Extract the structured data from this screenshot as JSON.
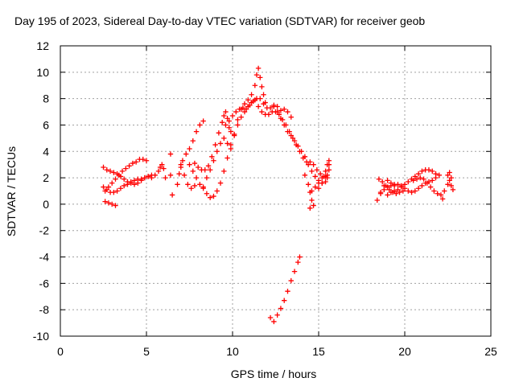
{
  "chart_data": {
    "type": "scatter",
    "title": "Day 195 of 2023, Sidereal Day-to-day VTEC variation (SDTVAR) for receiver geob",
    "xlabel": "GPS time / hours",
    "ylabel": "SDTVAR / TECUs",
    "xlim": [
      0,
      25
    ],
    "ylim": [
      -10,
      12
    ],
    "x_ticks": [
      "0",
      "5",
      "10",
      "15",
      "20",
      "25"
    ],
    "y_ticks": [
      "12",
      "10",
      "8",
      "6",
      "4",
      "2",
      "0",
      "-2",
      "-4",
      "-6",
      "-8",
      "-10"
    ],
    "grid": true,
    "marker": "plus",
    "color": "#ff0000",
    "series": [
      {
        "points": [
          [
            2.5,
            2.8
          ],
          [
            2.7,
            2.6
          ],
          [
            2.9,
            2.5
          ],
          [
            3.1,
            2.4
          ],
          [
            3.3,
            2.3
          ],
          [
            3.5,
            2.1
          ],
          [
            3.7,
            1.9
          ],
          [
            3.9,
            1.7
          ],
          [
            4.1,
            1.6
          ],
          [
            4.3,
            1.5
          ],
          [
            4.5,
            1.6
          ],
          [
            4.7,
            1.8
          ],
          [
            4.9,
            2.0
          ],
          [
            5.1,
            2.1
          ],
          [
            5.3,
            2.0
          ],
          [
            2.6,
            1.0
          ],
          [
            2.8,
            1.3
          ],
          [
            3.0,
            1.6
          ],
          [
            3.2,
            1.9
          ],
          [
            3.4,
            2.2
          ],
          [
            3.6,
            2.5
          ],
          [
            3.8,
            2.7
          ],
          [
            4.0,
            2.9
          ],
          [
            4.2,
            3.1
          ],
          [
            4.4,
            3.2
          ],
          [
            4.6,
            3.4
          ],
          [
            4.8,
            3.4
          ],
          [
            5.0,
            3.3
          ],
          [
            2.5,
            1.3
          ],
          [
            2.7,
            1.1
          ],
          [
            2.9,
            0.9
          ],
          [
            3.1,
            0.9
          ],
          [
            3.3,
            1.0
          ],
          [
            3.5,
            1.2
          ],
          [
            3.7,
            1.4
          ],
          [
            3.9,
            1.5
          ],
          [
            4.1,
            1.7
          ],
          [
            4.3,
            1.8
          ],
          [
            4.5,
            1.9
          ],
          [
            4.7,
            1.9
          ],
          [
            4.9,
            2.0
          ],
          [
            5.1,
            2.1
          ],
          [
            5.3,
            2.2
          ],
          [
            5.5,
            2.2
          ],
          [
            5.7,
            2.5
          ],
          [
            5.8,
            2.8
          ],
          [
            5.9,
            3.0
          ],
          [
            6.0,
            2.7
          ],
          [
            6.1,
            2.0
          ],
          [
            2.6,
            0.2
          ],
          [
            2.8,
            0.1
          ],
          [
            3.0,
            0.0
          ],
          [
            3.2,
            -0.1
          ],
          [
            6.4,
            3.8
          ],
          [
            6.4,
            2.2
          ],
          [
            6.5,
            0.7
          ],
          [
            7.0,
            2.8
          ],
          [
            7.1,
            3.3
          ],
          [
            7.3,
            3.8
          ],
          [
            7.5,
            4.2
          ],
          [
            7.7,
            4.8
          ],
          [
            7.9,
            5.5
          ],
          [
            8.1,
            6.0
          ],
          [
            8.3,
            6.3
          ],
          [
            6.8,
            1.5
          ],
          [
            6.9,
            2.3
          ],
          [
            7.0,
            3.0
          ],
          [
            7.2,
            2.2
          ],
          [
            7.4,
            1.5
          ],
          [
            7.6,
            1.2
          ],
          [
            7.8,
            1.4
          ],
          [
            7.5,
            3.0
          ],
          [
            7.7,
            2.5
          ],
          [
            7.9,
            2.0
          ],
          [
            8.1,
            1.5
          ],
          [
            8.3,
            1.2
          ],
          [
            8.5,
            0.8
          ],
          [
            8.7,
            0.5
          ],
          [
            8.9,
            0.6
          ],
          [
            9.1,
            1.0
          ],
          [
            9.3,
            1.6
          ],
          [
            9.5,
            2.5
          ],
          [
            9.7,
            3.5
          ],
          [
            9.9,
            4.5
          ],
          [
            10.1,
            5.3
          ],
          [
            10.3,
            6.0
          ],
          [
            10.5,
            6.6
          ],
          [
            10.7,
            7.0
          ],
          [
            10.9,
            7.4
          ],
          [
            11.1,
            7.7
          ],
          [
            11.3,
            7.9
          ],
          [
            7.8,
            3.1
          ],
          [
            8.0,
            2.8
          ],
          [
            8.2,
            2.6
          ],
          [
            8.4,
            2.6
          ],
          [
            8.6,
            2.9
          ],
          [
            8.8,
            3.6
          ],
          [
            9.0,
            4.5
          ],
          [
            9.2,
            5.4
          ],
          [
            9.4,
            6.2
          ],
          [
            9.5,
            6.7
          ],
          [
            9.6,
            7.0
          ],
          [
            9.7,
            6.5
          ],
          [
            9.8,
            5.8
          ],
          [
            9.9,
            5.5
          ],
          [
            8.3,
            1.3
          ],
          [
            8.5,
            2.0
          ],
          [
            8.7,
            2.6
          ],
          [
            8.9,
            3.3
          ],
          [
            9.1,
            4.0
          ],
          [
            9.3,
            4.6
          ],
          [
            9.5,
            5.0
          ],
          [
            9.7,
            4.6
          ],
          [
            9.9,
            4.2
          ],
          [
            10.1,
            5.2
          ],
          [
            10.3,
            6.4
          ],
          [
            10.5,
            7.2
          ],
          [
            10.7,
            7.6
          ],
          [
            10.9,
            7.9
          ],
          [
            11.1,
            8.3
          ],
          [
            11.3,
            9.0
          ],
          [
            11.4,
            9.8
          ],
          [
            11.5,
            10.3
          ],
          [
            11.6,
            9.6
          ],
          [
            11.7,
            8.9
          ],
          [
            11.8,
            8.3
          ],
          [
            11.9,
            7.7
          ],
          [
            9.6,
            6.0
          ],
          [
            9.8,
            6.3
          ],
          [
            10.0,
            6.7
          ],
          [
            10.2,
            7.0
          ],
          [
            10.4,
            7.2
          ],
          [
            10.6,
            7.3
          ],
          [
            10.8,
            7.2
          ],
          [
            11.0,
            7.5
          ],
          [
            11.2,
            7.8
          ],
          [
            11.4,
            8.0
          ],
          [
            11.6,
            8.0
          ],
          [
            11.8,
            7.6
          ],
          [
            12.0,
            7.3
          ],
          [
            12.2,
            7.3
          ],
          [
            12.4,
            7.5
          ],
          [
            12.6,
            7.4
          ],
          [
            12.8,
            7.1
          ],
          [
            13.0,
            7.2
          ],
          [
            13.2,
            7.0
          ],
          [
            13.4,
            6.6
          ],
          [
            11.5,
            7.4
          ],
          [
            11.7,
            7.0
          ],
          [
            11.9,
            6.8
          ],
          [
            12.1,
            6.8
          ],
          [
            12.3,
            7.0
          ],
          [
            12.5,
            7.0
          ],
          [
            12.7,
            6.8
          ],
          [
            12.9,
            6.4
          ],
          [
            13.1,
            6.0
          ],
          [
            13.3,
            5.5
          ],
          [
            13.5,
            5.0
          ],
          [
            13.7,
            4.5
          ],
          [
            13.9,
            4.0
          ],
          [
            14.1,
            3.5
          ],
          [
            14.3,
            3.2
          ],
          [
            14.5,
            3.2
          ],
          [
            14.7,
            3.0
          ],
          [
            14.9,
            2.6
          ],
          [
            15.1,
            2.3
          ],
          [
            15.3,
            2.1
          ],
          [
            15.5,
            2.0
          ],
          [
            12.4,
            7.4
          ],
          [
            12.6,
            7.0
          ],
          [
            12.8,
            6.5
          ],
          [
            13.0,
            6.0
          ],
          [
            13.2,
            5.5
          ],
          [
            13.4,
            5.2
          ],
          [
            13.6,
            4.8
          ],
          [
            13.8,
            4.4
          ],
          [
            14.0,
            4.0
          ],
          [
            14.2,
            3.6
          ],
          [
            14.4,
            3.0
          ],
          [
            14.6,
            2.5
          ],
          [
            14.8,
            2.1
          ],
          [
            15.0,
            1.8
          ],
          [
            15.2,
            1.6
          ],
          [
            15.4,
            1.7
          ],
          [
            15.5,
            2.2
          ],
          [
            14.2,
            2.2
          ],
          [
            14.4,
            1.5
          ],
          [
            14.5,
            0.9
          ],
          [
            14.6,
            0.3
          ],
          [
            14.7,
            -0.1
          ],
          [
            14.5,
            -0.3
          ],
          [
            14.6,
            1.0
          ],
          [
            14.8,
            1.3
          ],
          [
            15.0,
            1.6
          ],
          [
            15.2,
            2.0
          ],
          [
            15.4,
            2.5
          ],
          [
            15.6,
            3.0
          ],
          [
            15.6,
            3.3
          ],
          [
            15.0,
            1.2
          ],
          [
            15.2,
            1.6
          ],
          [
            15.4,
            2.1
          ],
          [
            15.6,
            2.6
          ],
          [
            15.5,
            3.0
          ],
          [
            12.2,
            -8.6
          ],
          [
            12.4,
            -8.9
          ],
          [
            12.6,
            -8.4
          ],
          [
            12.8,
            -7.9
          ],
          [
            13.0,
            -7.3
          ],
          [
            13.2,
            -6.6
          ],
          [
            13.4,
            -5.8
          ],
          [
            13.6,
            -5.1
          ],
          [
            13.8,
            -4.4
          ],
          [
            13.9,
            -4.0
          ],
          [
            18.4,
            0.3
          ],
          [
            18.6,
            0.9
          ],
          [
            18.8,
            1.4
          ],
          [
            19.0,
            1.8
          ],
          [
            19.2,
            1.6
          ],
          [
            19.4,
            1.4
          ],
          [
            18.5,
            1.9
          ],
          [
            18.7,
            1.7
          ],
          [
            18.9,
            1.4
          ],
          [
            19.1,
            1.1
          ],
          [
            19.3,
            0.9
          ],
          [
            19.5,
            0.8
          ],
          [
            19.7,
            0.9
          ],
          [
            19.9,
            1.0
          ],
          [
            18.6,
            0.8
          ],
          [
            18.8,
            1.1
          ],
          [
            19.0,
            1.3
          ],
          [
            19.2,
            1.4
          ],
          [
            19.4,
            1.5
          ],
          [
            19.6,
            1.5
          ],
          [
            19.8,
            1.4
          ],
          [
            20.0,
            1.2
          ],
          [
            20.2,
            1.0
          ],
          [
            20.4,
            0.9
          ],
          [
            20.6,
            1.0
          ],
          [
            20.8,
            1.2
          ],
          [
            21.0,
            1.4
          ],
          [
            21.2,
            1.6
          ],
          [
            21.4,
            1.7
          ],
          [
            21.6,
            1.8
          ],
          [
            21.8,
            2.0
          ],
          [
            22.0,
            2.2
          ],
          [
            19.0,
            0.7
          ],
          [
            19.2,
            0.9
          ],
          [
            19.4,
            1.0
          ],
          [
            19.6,
            1.1
          ],
          [
            19.8,
            1.3
          ],
          [
            20.0,
            1.5
          ],
          [
            20.2,
            1.7
          ],
          [
            20.4,
            1.9
          ],
          [
            20.6,
            2.1
          ],
          [
            20.8,
            2.3
          ],
          [
            21.0,
            2.5
          ],
          [
            21.2,
            2.6
          ],
          [
            21.4,
            2.6
          ],
          [
            21.6,
            2.5
          ],
          [
            21.8,
            2.3
          ],
          [
            20.5,
            1.8
          ],
          [
            20.7,
            1.9
          ],
          [
            20.9,
            2.0
          ],
          [
            21.1,
            1.9
          ],
          [
            21.3,
            1.6
          ],
          [
            21.5,
            1.3
          ],
          [
            21.7,
            1.0
          ],
          [
            21.9,
            0.8
          ],
          [
            22.1,
            0.7
          ],
          [
            22.3,
            1.0
          ],
          [
            22.5,
            1.5
          ],
          [
            22.7,
            2.0
          ],
          [
            22.5,
            2.2
          ],
          [
            22.6,
            1.8
          ],
          [
            22.7,
            1.4
          ],
          [
            22.8,
            1.1
          ],
          [
            22.6,
            2.4
          ],
          [
            22.2,
            0.4
          ]
        ]
      }
    ]
  }
}
